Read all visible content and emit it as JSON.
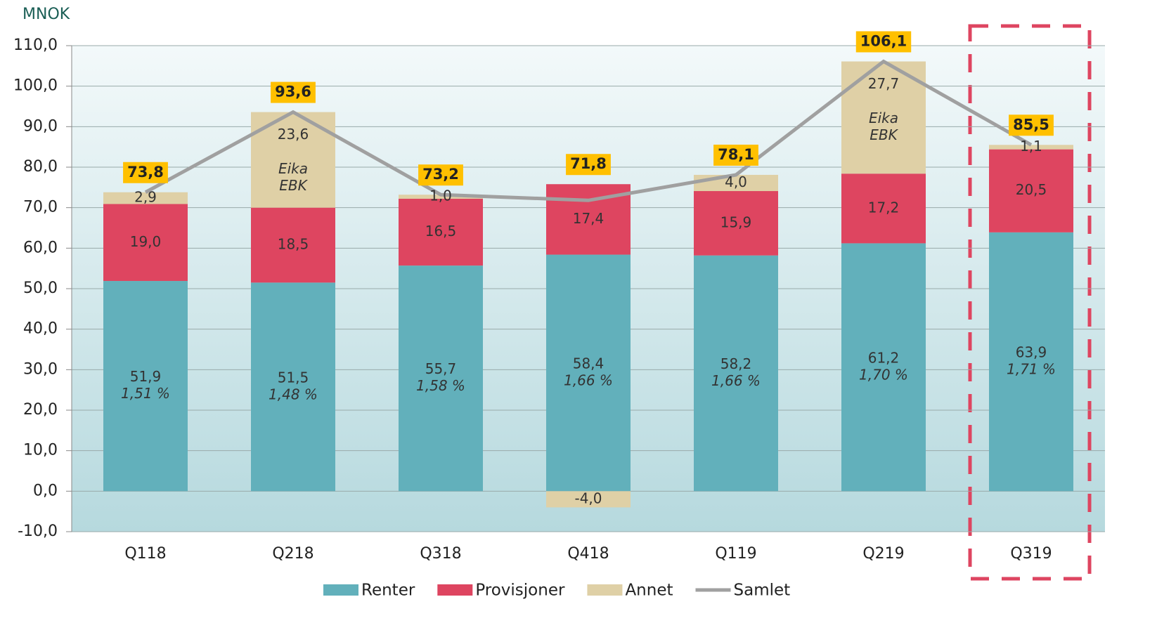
{
  "chart_data": {
    "type": "bar",
    "stacked": true,
    "y_label": "MNOK",
    "categories": [
      "Q118",
      "Q218",
      "Q318",
      "Q418",
      "Q119",
      "Q219",
      "Q319"
    ],
    "series": [
      {
        "name": "Renter",
        "color": "#62b0bb",
        "values": [
          51.9,
          51.5,
          55.7,
          58.4,
          58.2,
          61.2,
          63.9
        ],
        "value_labels": [
          "51,9",
          "51,5",
          "55,7",
          "58,4",
          "58,2",
          "61,2",
          "63,9"
        ],
        "annotations": [
          "1,51 %",
          "1,48 %",
          "1,58 %",
          "1,66 %",
          "1,66 %",
          "1,70 %",
          "1,71 %"
        ]
      },
      {
        "name": "Provisjoner",
        "color": "#de4560",
        "values": [
          19.0,
          18.5,
          16.5,
          17.4,
          15.9,
          17.2,
          20.5
        ],
        "value_labels": [
          "19,0",
          "18,5",
          "16,5",
          "17,4",
          "15,9",
          "17,2",
          "20,5"
        ]
      },
      {
        "name": "Annet",
        "color": "#dfd0a6",
        "values": [
          2.9,
          23.6,
          1.0,
          -4.0,
          4.0,
          27.7,
          1.1
        ],
        "value_labels": [
          "2,9",
          "23,6",
          "1,0",
          "-4,0",
          "4,0",
          "27,7",
          "1,1"
        ],
        "annotations": [
          null,
          [
            "Eika",
            "EBK"
          ],
          null,
          null,
          null,
          [
            "Eika",
            "EBK"
          ],
          null
        ]
      },
      {
        "name": "Samlet",
        "type": "line",
        "color": "#a0a0a0",
        "values": [
          73.8,
          93.6,
          73.2,
          71.8,
          78.1,
          106.1,
          85.5
        ],
        "value_labels": [
          "73,8",
          "93,6",
          "73,2",
          "71,8",
          "78,1",
          "106,1",
          "85,5"
        ],
        "label_color": "#ffc000"
      }
    ],
    "ylim": [
      -10,
      110
    ],
    "yticks": [
      {
        "value": -10,
        "label": "-10,0"
      },
      {
        "value": 0,
        "label": "0,0"
      },
      {
        "value": 10,
        "label": "10,0"
      },
      {
        "value": 20,
        "label": "20,0"
      },
      {
        "value": 30,
        "label": "30,0"
      },
      {
        "value": 40,
        "label": "40,0"
      },
      {
        "value": 50,
        "label": "50,0"
      },
      {
        "value": 60,
        "label": "60,0"
      },
      {
        "value": 70,
        "label": "70,0"
      },
      {
        "value": 80,
        "label": "80,0"
      },
      {
        "value": 90,
        "label": "90,0"
      },
      {
        "value": 100,
        "label": "100,0"
      },
      {
        "value": 110,
        "label": "110,0"
      }
    ],
    "grid": true,
    "legend": "bottom"
  }
}
